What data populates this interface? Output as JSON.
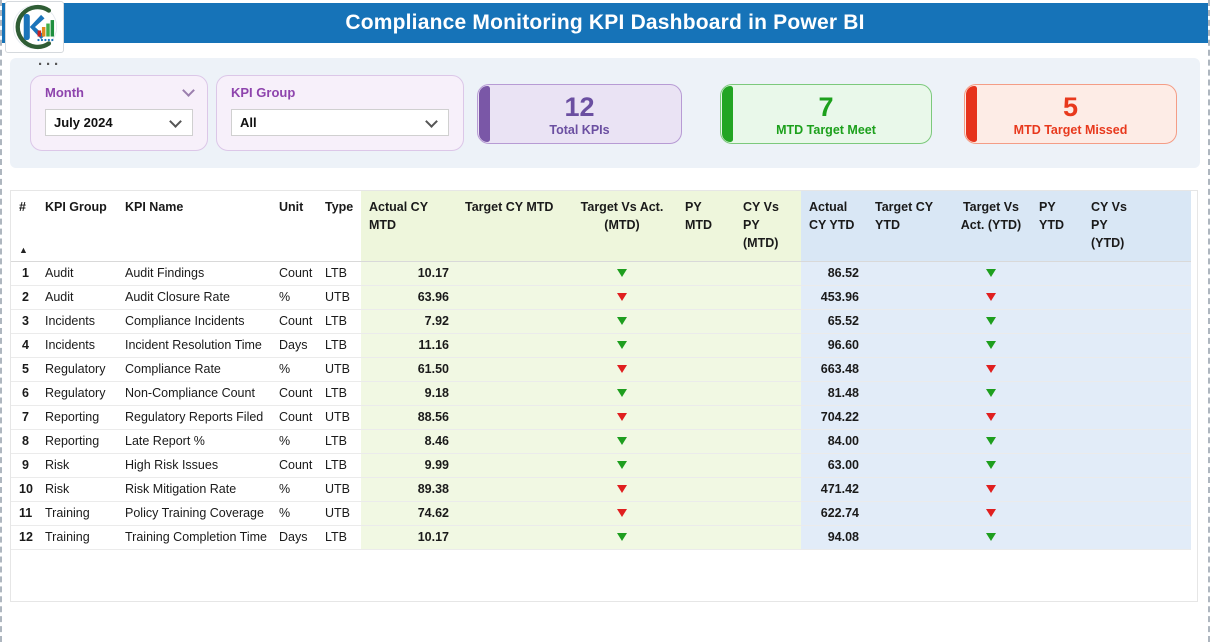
{
  "header": {
    "title": "Compliance Monitoring KPI Dashboard in Power BI"
  },
  "filters": {
    "more_options": "···",
    "slicers": [
      {
        "label": "Month",
        "value": "July 2024"
      },
      {
        "label": "KPI Group",
        "value": "All"
      }
    ]
  },
  "kpi_cards": [
    {
      "value": "12",
      "label": "Total KPIs"
    },
    {
      "value": "7",
      "label": "MTD Target Meet"
    },
    {
      "value": "5",
      "label": "MTD Target Missed"
    }
  ],
  "table": {
    "sort_indicator": "▲",
    "columns": [
      {
        "key": "n",
        "label": "#",
        "section": "plain"
      },
      {
        "key": "group",
        "label": "KPI Group",
        "section": "plain"
      },
      {
        "key": "name",
        "label": "KPI Name",
        "section": "plain"
      },
      {
        "key": "unit",
        "label": "Unit",
        "section": "plain"
      },
      {
        "key": "type",
        "label": "Type",
        "section": "plain"
      },
      {
        "key": "actual_cy_mtd",
        "label": "Actual CY MTD",
        "section": "mtd"
      },
      {
        "key": "target_cy_mtd",
        "label": "Target CY MTD",
        "section": "mtd"
      },
      {
        "key": "tva_mtd",
        "label": "Target Vs Act. (MTD)",
        "section": "mtd"
      },
      {
        "key": "py_mtd",
        "label": "PY MTD",
        "section": "mtd"
      },
      {
        "key": "cy_vs_py_mtd",
        "label": "CY Vs PY (MTD)",
        "section": "mtd"
      },
      {
        "key": "actual_cy_ytd",
        "label": "Actual CY YTD",
        "section": "ytd"
      },
      {
        "key": "target_cy_ytd",
        "label": "Target CY YTD",
        "section": "ytd"
      },
      {
        "key": "tva_ytd",
        "label": "Target Vs Act. (YTD)",
        "section": "ytd"
      },
      {
        "key": "py_ytd",
        "label": "PY YTD",
        "section": "ytd"
      },
      {
        "key": "cy_vs_py_ytd",
        "label": "CY Vs PY (YTD)",
        "section": "ytd"
      }
    ],
    "rows": [
      {
        "n": "1",
        "group": "Audit",
        "name": "Audit Findings",
        "unit": "Count",
        "type": "LTB",
        "actual_cy_mtd": "10.17",
        "tva_mtd": "meet",
        "actual_cy_ytd": "86.52",
        "tva_ytd": "meet"
      },
      {
        "n": "2",
        "group": "Audit",
        "name": "Audit Closure Rate",
        "unit": "%",
        "type": "UTB",
        "actual_cy_mtd": "63.96",
        "tva_mtd": "missed",
        "actual_cy_ytd": "453.96",
        "tva_ytd": "missed"
      },
      {
        "n": "3",
        "group": "Incidents",
        "name": "Compliance Incidents",
        "unit": "Count",
        "type": "LTB",
        "actual_cy_mtd": "7.92",
        "tva_mtd": "meet",
        "actual_cy_ytd": "65.52",
        "tva_ytd": "meet"
      },
      {
        "n": "4",
        "group": "Incidents",
        "name": "Incident Resolution Time",
        "unit": "Days",
        "type": "LTB",
        "actual_cy_mtd": "11.16",
        "tva_mtd": "meet",
        "actual_cy_ytd": "96.60",
        "tva_ytd": "meet"
      },
      {
        "n": "5",
        "group": "Regulatory",
        "name": "Compliance Rate",
        "unit": "%",
        "type": "UTB",
        "actual_cy_mtd": "61.50",
        "tva_mtd": "missed",
        "actual_cy_ytd": "663.48",
        "tva_ytd": "missed"
      },
      {
        "n": "6",
        "group": "Regulatory",
        "name": "Non-Compliance Count",
        "unit": "Count",
        "type": "LTB",
        "actual_cy_mtd": "9.18",
        "tva_mtd": "meet",
        "actual_cy_ytd": "81.48",
        "tva_ytd": "meet"
      },
      {
        "n": "7",
        "group": "Reporting",
        "name": "Regulatory Reports Filed",
        "unit": "Count",
        "type": "UTB",
        "actual_cy_mtd": "88.56",
        "tva_mtd": "missed",
        "actual_cy_ytd": "704.22",
        "tva_ytd": "missed"
      },
      {
        "n": "8",
        "group": "Reporting",
        "name": "Late Report %",
        "unit": "%",
        "type": "LTB",
        "actual_cy_mtd": "8.46",
        "tva_mtd": "meet",
        "actual_cy_ytd": "84.00",
        "tva_ytd": "meet"
      },
      {
        "n": "9",
        "group": "Risk",
        "name": "High Risk Issues",
        "unit": "Count",
        "type": "LTB",
        "actual_cy_mtd": "9.99",
        "tva_mtd": "meet",
        "actual_cy_ytd": "63.00",
        "tva_ytd": "meet"
      },
      {
        "n": "10",
        "group": "Risk",
        "name": "Risk Mitigation Rate",
        "unit": "%",
        "type": "UTB",
        "actual_cy_mtd": "89.38",
        "tva_mtd": "missed",
        "actual_cy_ytd": "471.42",
        "tva_ytd": "missed"
      },
      {
        "n": "11",
        "group": "Training",
        "name": "Policy Training Coverage",
        "unit": "%",
        "type": "UTB",
        "actual_cy_mtd": "74.62",
        "tva_mtd": "missed",
        "actual_cy_ytd": "622.74",
        "tva_ytd": "missed"
      },
      {
        "n": "12",
        "group": "Training",
        "name": "Training Completion Time",
        "unit": "Days",
        "type": "LTB",
        "actual_cy_mtd": "10.17",
        "tva_mtd": "meet",
        "actual_cy_ytd": "94.08",
        "tva_ytd": "meet"
      }
    ]
  },
  "colors": {
    "header_blue": "#1673b8",
    "mtd_section_bg": "#f1f8e3",
    "ytd_section_bg": "#e2ecf8",
    "target_meet": "#1e9e1e",
    "target_missed": "#e01f1f",
    "purple_accent": "#7a57a7",
    "green_accent": "#23a523",
    "red_accent": "#e6331c"
  }
}
